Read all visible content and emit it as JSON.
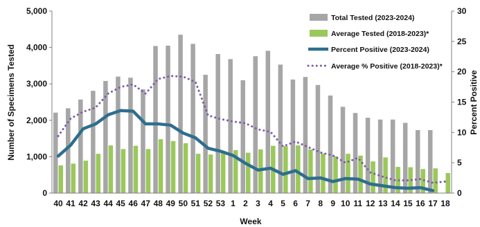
{
  "chart_data": {
    "type": "bar",
    "xlabel": "Week",
    "ylabel": "Number of Specimens Tested",
    "y2label": "Percent Positive",
    "ylim": [
      0,
      5000
    ],
    "y2lim": [
      0,
      30
    ],
    "yticks": [
      "0",
      "1,000",
      "2,000",
      "3,000",
      "4,000",
      "5,000"
    ],
    "y2ticks": [
      "0",
      "5",
      "10",
      "15",
      "20",
      "25",
      "30"
    ],
    "grid": false,
    "legend_position": "top-right",
    "categories": [
      "40",
      "41",
      "42",
      "43",
      "44",
      "45",
      "46",
      "47",
      "48",
      "49",
      "50",
      "51",
      "52",
      "53",
      "1",
      "2",
      "3",
      "4",
      "5",
      "6",
      "7",
      "8",
      "9",
      "10",
      "11",
      "12",
      "13",
      "14",
      "15",
      "16",
      "17",
      "18"
    ],
    "series": [
      {
        "name": "Total Tested (2023-2024)",
        "kind": "bar",
        "axis": "left",
        "color": "#a6a6a6",
        "values": [
          2210,
          2330,
          2570,
          2810,
          3080,
          3200,
          3170,
          2850,
          4040,
          4050,
          4350,
          4100,
          3250,
          3820,
          3680,
          3100,
          3760,
          3910,
          3530,
          3120,
          3190,
          2970,
          2680,
          2370,
          2200,
          2070,
          2020,
          2020,
          1930,
          1730,
          1730,
          null
        ]
      },
      {
        "name": "Average Tested (2018-2023)*",
        "kind": "bar",
        "axis": "left",
        "color": "#9bc85a",
        "values": [
          760,
          810,
          890,
          1080,
          1310,
          1210,
          1300,
          1210,
          1480,
          1430,
          1370,
          1080,
          1060,
          1110,
          1180,
          1110,
          1200,
          1300,
          1290,
          1310,
          1200,
          1090,
          1010,
          1080,
          1030,
          870,
          980,
          720,
          710,
          660,
          680,
          550
        ]
      },
      {
        "name": "Percent Positive (2023-2024)",
        "kind": "line",
        "axis": "right",
        "color": "#2e6e8e",
        "values": [
          6.1,
          7.9,
          10.6,
          11.4,
          12.9,
          13.6,
          13.5,
          11.4,
          11.4,
          11.2,
          9.9,
          9.1,
          7.4,
          6.9,
          6.2,
          4.9,
          3.8,
          4.1,
          3.1,
          3.7,
          2.4,
          2.5,
          1.9,
          2.4,
          2.3,
          1.5,
          1.2,
          0.9,
          0.8,
          0.9,
          0.4,
          null
        ]
      },
      {
        "name": "Average % Positive (2018-2023)*",
        "kind": "line",
        "axis": "right",
        "color": "#7b5ea7",
        "values": [
          9.4,
          12.3,
          13.4,
          14.1,
          16.4,
          17.5,
          17.9,
          16.4,
          18.8,
          19.3,
          19.2,
          18.3,
          12.8,
          12.2,
          11.8,
          11.5,
          10.5,
          10.1,
          7.7,
          8.5,
          7.6,
          6.7,
          6.2,
          5.0,
          5.8,
          3.4,
          2.7,
          2.1,
          2.1,
          2.3,
          1.7,
          1.9
        ]
      }
    ]
  }
}
